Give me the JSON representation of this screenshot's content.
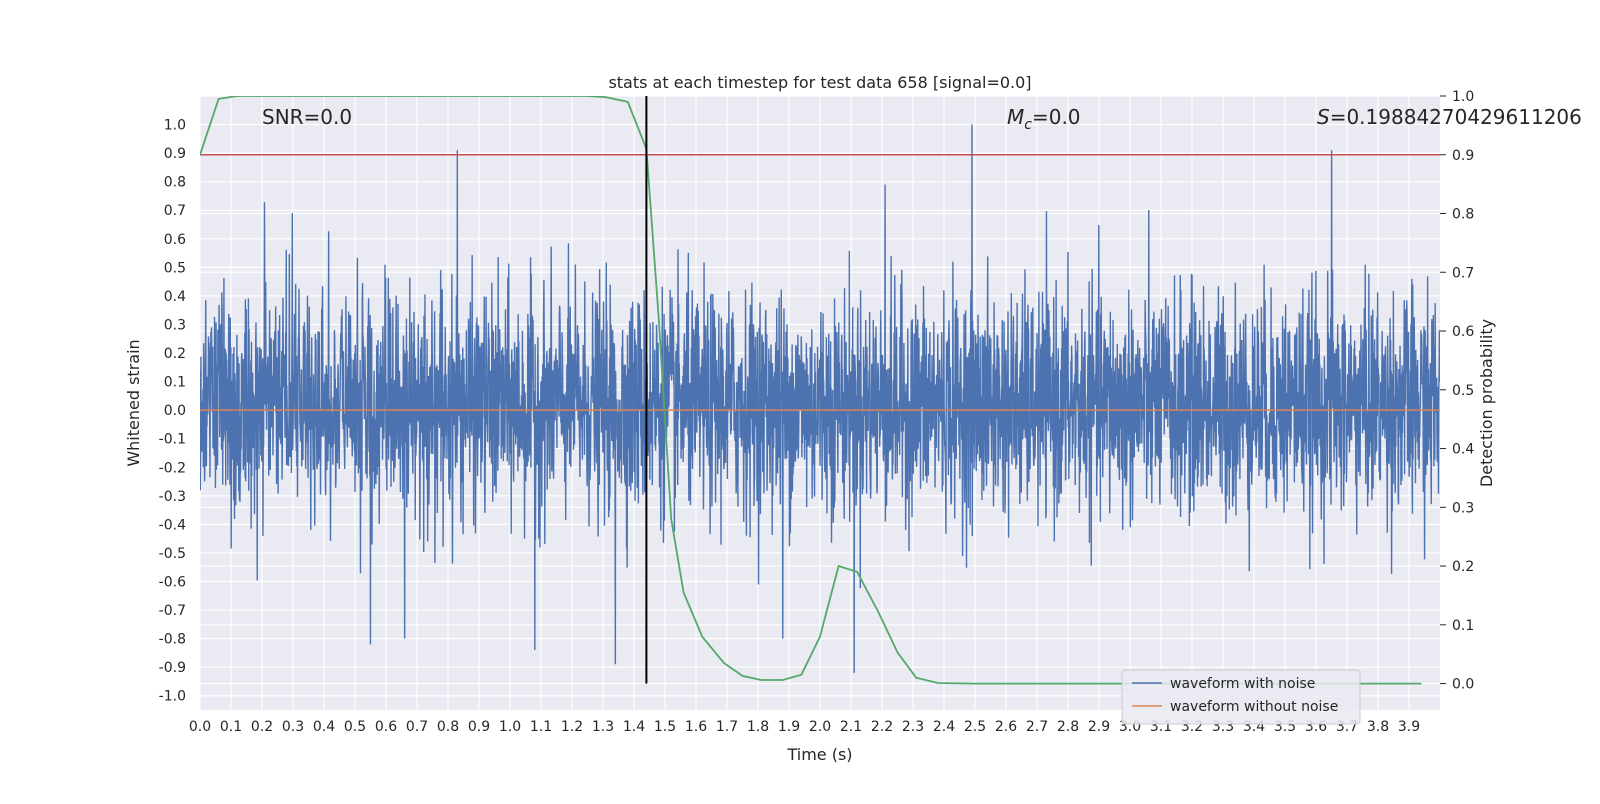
{
  "chart_data": {
    "type": "line",
    "title": "stats at each timestep for test data 658 [signal=0.0]",
    "xlabel": "Time (s)",
    "ylabel": "Whitened strain",
    "y2label": "Detection probability",
    "xlim": [
      0.0,
      4.0
    ],
    "ylim": [
      -1.05,
      1.1
    ],
    "y2lim": [
      -0.045,
      1.0
    ],
    "x_ticks": [
      "0.0",
      "0.1",
      "0.2",
      "0.3",
      "0.4",
      "0.5",
      "0.6",
      "0.7",
      "0.8",
      "0.9",
      "1.0",
      "1.1",
      "1.2",
      "1.3",
      "1.4",
      "1.5",
      "1.6",
      "1.7",
      "1.8",
      "1.9",
      "2.0",
      "2.1",
      "2.2",
      "2.3",
      "2.4",
      "2.5",
      "2.6",
      "2.7",
      "2.8",
      "2.9",
      "3.0",
      "3.1",
      "3.2",
      "3.3",
      "3.4",
      "3.5",
      "3.6",
      "3.7",
      "3.8",
      "3.9"
    ],
    "y_ticks": [
      "-1.0",
      "-0.9",
      "-0.8",
      "-0.7",
      "-0.6",
      "-0.5",
      "-0.4",
      "-0.3",
      "-0.2",
      "-0.1",
      "0.0",
      "0.1",
      "0.2",
      "0.3",
      "0.4",
      "0.5",
      "0.6",
      "0.7",
      "0.8",
      "0.9",
      "1.0"
    ],
    "y2_ticks": [
      "0.0",
      "0.1",
      "0.2",
      "0.3",
      "0.4",
      "0.5",
      "0.6",
      "0.7",
      "0.8",
      "0.9",
      "1.0"
    ],
    "grid": true,
    "legend_position": "lower-right",
    "colors": {
      "noise": "#4c72b0",
      "clean": "#dd8452",
      "prob": "#55a868",
      "threshold": "#c44e52",
      "marker": "#000000",
      "background": "#eaeaf2"
    },
    "series": [
      {
        "name": "waveform with noise",
        "axis": "left",
        "description_values": "dense white noise, mostly within -0.6..0.7 with spikes",
        "spikes": [
          {
            "x": 0.83,
            "y": 0.91
          },
          {
            "x": 2.49,
            "y": 1.0
          },
          {
            "x": 3.65,
            "y": 0.91
          },
          {
            "x": 2.21,
            "y": 0.79
          },
          {
            "x": 1.34,
            "y": -0.89
          },
          {
            "x": 1.08,
            "y": -0.84
          },
          {
            "x": 2.11,
            "y": -0.92
          },
          {
            "x": 0.55,
            "y": -0.82
          },
          {
            "x": 0.66,
            "y": -0.8
          },
          {
            "x": 1.88,
            "y": -0.8
          }
        ]
      },
      {
        "name": "waveform without noise",
        "axis": "left",
        "x": [
          0.0,
          4.0
        ],
        "y": [
          0.0,
          0.0
        ]
      },
      {
        "axis": "right",
        "x": [
          0.0,
          0.06,
          0.12,
          0.2,
          0.5,
          1.0,
          1.25,
          1.31,
          1.38,
          1.44,
          1.48,
          1.52,
          1.56,
          1.62,
          1.69,
          1.75,
          1.81,
          1.88,
          1.94,
          2.0,
          2.06,
          2.12,
          2.19,
          2.25,
          2.31,
          2.38,
          2.5,
          3.0,
          3.5,
          3.94
        ],
        "y": [
          0.9,
          0.995,
          1.0,
          1.0,
          1.0,
          1.0,
          1.0,
          0.998,
          0.99,
          0.91,
          0.62,
          0.28,
          0.155,
          0.08,
          0.035,
          0.013,
          0.006,
          0.006,
          0.015,
          0.08,
          0.2,
          0.19,
          0.12,
          0.053,
          0.01,
          0.001,
          0.0,
          0.0,
          0.0,
          0.0
        ]
      },
      {
        "axis": "right",
        "x": [
          0.0,
          4.0
        ],
        "y": [
          0.9,
          0.9
        ]
      }
    ],
    "vline": {
      "x": 1.44,
      "y2range": [
        0.0,
        1.0
      ]
    },
    "annotations": {
      "snr": "SNR=0.0",
      "mc_symbol": "M",
      "mc_sub": "c",
      "mc_value": "=0.0",
      "s_symbol": "S",
      "s_value": "=0.19884270429611206"
    }
  }
}
